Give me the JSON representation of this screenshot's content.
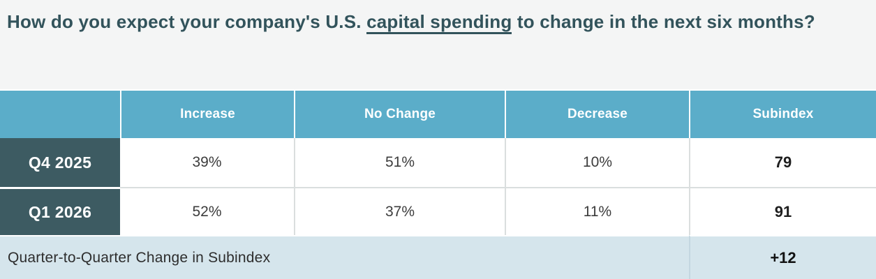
{
  "title": {
    "prefix": "How do you expect your company's U.S. ",
    "underlined_term": "capital spending",
    "suffix": " to change in the next six months?"
  },
  "chart_data": {
    "type": "table",
    "title": "How do you expect your company's U.S. capital spending to change in the next six months?",
    "columns": [
      "",
      "Increase",
      "No Change",
      "Decrease",
      "Subindex"
    ],
    "rows": [
      [
        "Q4 2025",
        "39%",
        "51%",
        "10%",
        "79"
      ],
      [
        "Q1 2026",
        "52%",
        "37%",
        "11%",
        "91"
      ]
    ],
    "footer": [
      "Quarter-to-Quarter Change in Subindex",
      "+12"
    ],
    "numeric": {
      "q4_2025": {
        "increase_pct": 39,
        "no_change_pct": 51,
        "decrease_pct": 10,
        "subindex": 79
      },
      "q1_2026": {
        "increase_pct": 52,
        "no_change_pct": 37,
        "decrease_pct": 11,
        "subindex": 91
      },
      "quarter_to_quarter_change": 12
    }
  },
  "colors": {
    "title_bg": "#F4F5F5",
    "title_text": "#32535B",
    "header_bg": "#5BADC9",
    "header_text": "#FFFFFF",
    "row_label_bg": "#3D5B62",
    "row_label_text": "#FFFFFF",
    "data_cell_bg": "#FFFFFF",
    "data_text": "#3C3C3C",
    "footer_bg": "#D5E5EC",
    "footer_text": "#2D2D2D"
  }
}
